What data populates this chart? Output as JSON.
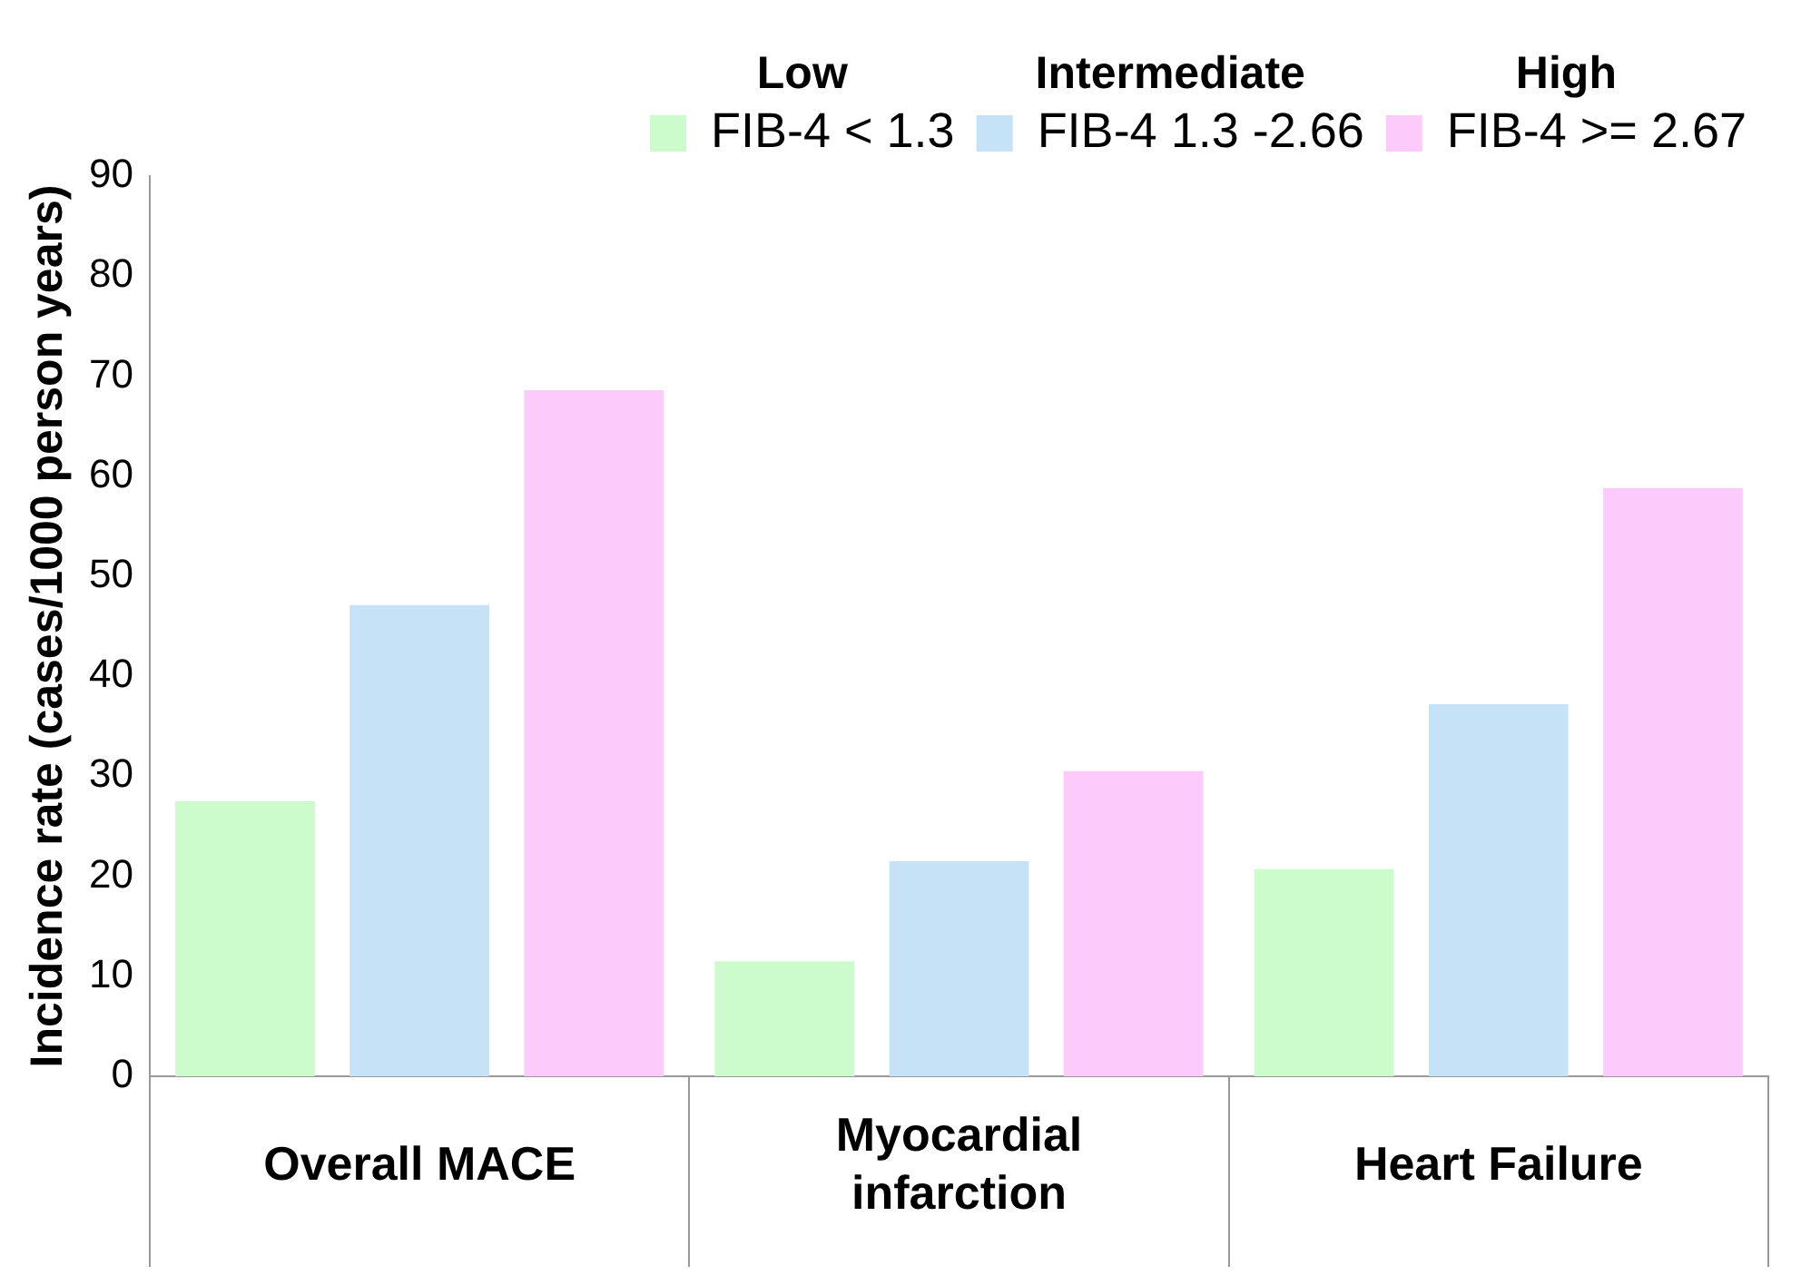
{
  "chart_data": {
    "type": "bar",
    "categories": [
      "Overall MACE",
      "Myocardial infarction",
      "Heart Failure"
    ],
    "series": [
      {
        "name": "FIB-4 < 1.3",
        "color": "#ccfccc",
        "values": [
          27.5,
          11.5,
          20.7
        ]
      },
      {
        "name": "FIB-4 1.3 -2.66",
        "color": "#c6e2f6",
        "values": [
          47.1,
          21.5,
          37.2
        ]
      },
      {
        "name": "FIB-4 >= 2.67",
        "color": "#fccbfc",
        "values": [
          68.6,
          30.5,
          58.8
        ]
      }
    ],
    "ylabel": "Incidence rate (cases/1000 person years)",
    "ylim": [
      0,
      90
    ],
    "yticks": [
      0,
      10,
      20,
      30,
      40,
      50,
      60,
      70,
      80,
      90
    ],
    "grid": false,
    "legend": "top right",
    "annotations": [
      "Low",
      "Intermediate",
      "High"
    ]
  }
}
